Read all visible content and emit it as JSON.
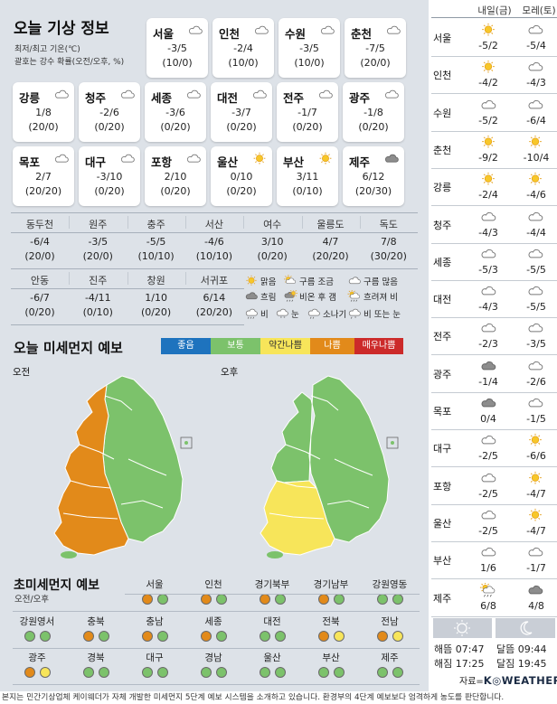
{
  "header": {
    "title": "오늘 기상 정보",
    "note1": "최저/최고 기온(℃)",
    "note2": "괄호는 강수 확률(오전/오후, %)"
  },
  "cards": [
    {
      "name": "서울",
      "icon": "cloud",
      "temp": "-3/5",
      "rain": "(10/0)"
    },
    {
      "name": "인천",
      "icon": "cloud",
      "temp": "-2/4",
      "rain": "(10/0)"
    },
    {
      "name": "수원",
      "icon": "cloud",
      "temp": "-3/5",
      "rain": "(10/0)"
    },
    {
      "name": "춘천",
      "icon": "cloud",
      "temp": "-7/5",
      "rain": "(20/0)"
    },
    {
      "name": "강릉",
      "icon": "cloud",
      "temp": "1/8",
      "rain": "(20/0)"
    },
    {
      "name": "청주",
      "icon": "cloud",
      "temp": "-2/6",
      "rain": "(0/20)"
    },
    {
      "name": "세종",
      "icon": "cloud",
      "temp": "-3/6",
      "rain": "(0/20)"
    },
    {
      "name": "대전",
      "icon": "cloud",
      "temp": "-3/7",
      "rain": "(0/20)"
    },
    {
      "name": "전주",
      "icon": "cloud",
      "temp": "-1/7",
      "rain": "(0/20)"
    },
    {
      "name": "광주",
      "icon": "cloud",
      "temp": "-1/8",
      "rain": "(0/20)"
    },
    {
      "name": "목포",
      "icon": "cloud",
      "temp": "2/7",
      "rain": "(20/20)"
    },
    {
      "name": "대구",
      "icon": "cloud",
      "temp": "-3/10",
      "rain": "(0/20)"
    },
    {
      "name": "포항",
      "icon": "cloud",
      "temp": "2/10",
      "rain": "(0/20)"
    },
    {
      "name": "울산",
      "icon": "sun",
      "temp": "0/10",
      "rain": "(0/20)"
    },
    {
      "name": "부산",
      "icon": "sun",
      "temp": "3/11",
      "rain": "(0/10)"
    },
    {
      "name": "제주",
      "icon": "dark-cloud",
      "temp": "6/12",
      "rain": "(20/30)"
    }
  ],
  "table": [
    {
      "name": "동두천",
      "temp": "-6/4",
      "rain": "(20/0)"
    },
    {
      "name": "원주",
      "temp": "-3/5",
      "rain": "(20/0)"
    },
    {
      "name": "충주",
      "temp": "-5/5",
      "rain": "(10/10)"
    },
    {
      "name": "서산",
      "temp": "-4/6",
      "rain": "(10/10)"
    },
    {
      "name": "여수",
      "temp": "3/10",
      "rain": "(0/20)"
    },
    {
      "name": "울릉도",
      "temp": "4/7",
      "rain": "(20/20)"
    },
    {
      "name": "독도",
      "temp": "7/8",
      "rain": "(30/20)"
    },
    {
      "name": "안동",
      "temp": "-6/7",
      "rain": "(0/20)"
    },
    {
      "name": "진주",
      "temp": "-4/11",
      "rain": "(0/10)"
    },
    {
      "name": "창원",
      "temp": "1/10",
      "rain": "(0/20)"
    },
    {
      "name": "서귀포",
      "temp": "6/14",
      "rain": "(20/20)"
    }
  ],
  "weather_legend": [
    {
      "label": "맑음",
      "icon": "sun"
    },
    {
      "label": "구름 조금",
      "icon": "sun-cloud"
    },
    {
      "label": "구름 많음",
      "icon": "cloud"
    },
    {
      "label": "흐림",
      "icon": "dark-cloud"
    },
    {
      "label": "비온 후 갬",
      "icon": "rain-then-sun"
    },
    {
      "label": "흐려져 비",
      "icon": "sun-rain"
    },
    {
      "label": "비",
      "icon": "rain"
    },
    {
      "label": "눈",
      "icon": "snow"
    },
    {
      "label": "소나기",
      "icon": "shower"
    },
    {
      "label": "비 또는 눈",
      "icon": "sleet"
    }
  ],
  "dust": {
    "title": "오늘 미세먼지 예보",
    "levels": [
      {
        "label": "좋음",
        "color": "#1e73be",
        "text": "#ffffff"
      },
      {
        "label": "보통",
        "color": "#7cc26b",
        "text": "#ffffff"
      },
      {
        "label": "약간나쁨",
        "color": "#f7e55a",
        "text": "#333333"
      },
      {
        "label": "나쁨",
        "color": "#e28a1a",
        "text": "#ffffff"
      },
      {
        "label": "매우나쁨",
        "color": "#cc2a2a",
        "text": "#ffffff"
      }
    ],
    "am_label": "오전",
    "pm_label": "오후"
  },
  "pm25": {
    "title": "초미세먼지 예보",
    "subtitle": "오전/오후",
    "colors": {
      "orange": "#e28a1a",
      "green": "#7cc26b",
      "yellow": "#f7e55a"
    },
    "regions": [
      {
        "name": "서울",
        "am": "orange",
        "pm": "green"
      },
      {
        "name": "인천",
        "am": "orange",
        "pm": "green"
      },
      {
        "name": "경기북부",
        "am": "orange",
        "pm": "green"
      },
      {
        "name": "경기남부",
        "am": "orange",
        "pm": "green"
      },
      {
        "name": "강원영동",
        "am": "green",
        "pm": "green"
      },
      {
        "name": "강원영서",
        "am": "green",
        "pm": "green"
      },
      {
        "name": "충북",
        "am": "orange",
        "pm": "green"
      },
      {
        "name": "충남",
        "am": "orange",
        "pm": "green"
      },
      {
        "name": "세종",
        "am": "orange",
        "pm": "green"
      },
      {
        "name": "대전",
        "am": "green",
        "pm": "green"
      },
      {
        "name": "전북",
        "am": "orange",
        "pm": "yellow"
      },
      {
        "name": "전남",
        "am": "orange",
        "pm": "yellow"
      },
      {
        "name": "광주",
        "am": "orange",
        "pm": "yellow"
      },
      {
        "name": "경북",
        "am": "green",
        "pm": "green"
      },
      {
        "name": "대구",
        "am": "green",
        "pm": "green"
      },
      {
        "name": "경남",
        "am": "green",
        "pm": "green"
      },
      {
        "name": "울산",
        "am": "green",
        "pm": "green"
      },
      {
        "name": "부산",
        "am": "green",
        "pm": "green"
      },
      {
        "name": "제주",
        "am": "green",
        "pm": "green"
      }
    ]
  },
  "forecast": {
    "day1": "내일(금)",
    "day2": "모레(토)",
    "rows": [
      {
        "name": "서울",
        "i1": "sun",
        "t1": "-5/2",
        "i2": "cloud",
        "t2": "-5/4"
      },
      {
        "name": "인천",
        "i1": "sun",
        "t1": "-4/2",
        "i2": "cloud",
        "t2": "-4/3"
      },
      {
        "name": "수원",
        "i1": "cloud",
        "t1": "-5/2",
        "i2": "cloud",
        "t2": "-6/4"
      },
      {
        "name": "춘천",
        "i1": "sun",
        "t1": "-9/2",
        "i2": "sun",
        "t2": "-10/4"
      },
      {
        "name": "강릉",
        "i1": "sun",
        "t1": "-2/4",
        "i2": "sun",
        "t2": "-4/6"
      },
      {
        "name": "청주",
        "i1": "cloud",
        "t1": "-4/3",
        "i2": "cloud",
        "t2": "-4/4"
      },
      {
        "name": "세종",
        "i1": "cloud",
        "t1": "-5/3",
        "i2": "cloud",
        "t2": "-5/5"
      },
      {
        "name": "대전",
        "i1": "cloud",
        "t1": "-4/3",
        "i2": "cloud",
        "t2": "-5/5"
      },
      {
        "name": "전주",
        "i1": "cloud",
        "t1": "-2/3",
        "i2": "cloud",
        "t2": "-3/5"
      },
      {
        "name": "광주",
        "i1": "dark-cloud",
        "t1": "-1/4",
        "i2": "cloud",
        "t2": "-2/6"
      },
      {
        "name": "목포",
        "i1": "dark-cloud",
        "t1": "0/4",
        "i2": "cloud",
        "t2": "-1/5"
      },
      {
        "name": "대구",
        "i1": "cloud",
        "t1": "-2/5",
        "i2": "sun",
        "t2": "-6/6"
      },
      {
        "name": "포항",
        "i1": "cloud",
        "t1": "-2/5",
        "i2": "sun",
        "t2": "-4/7"
      },
      {
        "name": "울산",
        "i1": "cloud",
        "t1": "-2/5",
        "i2": "sun",
        "t2": "-4/7"
      },
      {
        "name": "부산",
        "i1": "cloud",
        "t1": "1/6",
        "i2": "cloud",
        "t2": "-1/7"
      },
      {
        "name": "제주",
        "i1": "sun-rain",
        "t1": "6/8",
        "i2": "dark-cloud",
        "t2": "4/8"
      }
    ]
  },
  "sunmoon": {
    "sunrise": "해뜸 07:47",
    "sunset": "해짐 17:25",
    "moonrise": "달뜸 09:44",
    "moonset": "달짐 19:45"
  },
  "source": {
    "prefix": "자료=",
    "brand": "K◎WEATHER"
  },
  "footer": "본지는 민간기상업체 케이웨더가 자체 개발한 미세먼지 5단계 예보 시스템을 소개하고 있습니다. 환경부의 4단계 예보보다 엄격하게 농도를 판단합니다."
}
